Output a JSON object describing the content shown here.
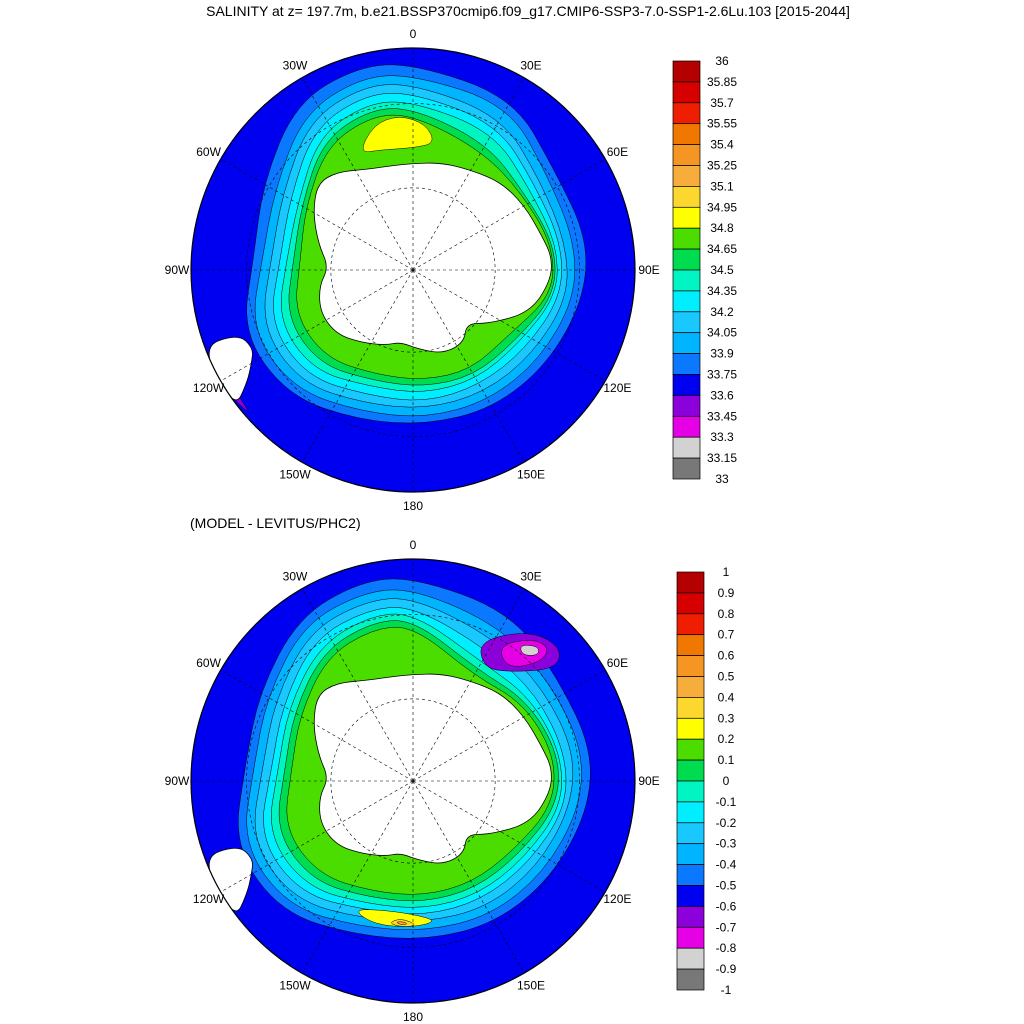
{
  "chart_data": [
    {
      "type": "heatmap",
      "projection": "south-polar-stereographic",
      "title": "SALINITY at z= 197.7m, b.e21.BSSP370cmip6.f09_g17.CMIP6-SSP3-7.0-SSP1-2.6Lu.103 [2015-2044]",
      "longitude_labels": [
        "0",
        "30E",
        "60E",
        "90E",
        "120E",
        "150E",
        "180",
        "150W",
        "120W",
        "90W",
        "60W",
        "30W"
      ],
      "grid": true,
      "legend": "right",
      "colorbar": {
        "labels": [
          "36",
          "35.85",
          "35.7",
          "35.55",
          "35.4",
          "35.25",
          "35.1",
          "34.95",
          "34.8",
          "34.65",
          "34.5",
          "34.35",
          "34.2",
          "34.05",
          "33.9",
          "33.75",
          "33.6",
          "33.45",
          "33.3",
          "33.15",
          "33"
        ],
        "colors": [
          "#b40000",
          "#d70000",
          "#f01e00",
          "#f07800",
          "#f59622",
          "#f7ad3c",
          "#fcd72e",
          "#ffff00",
          "#4bdc00",
          "#00dc50",
          "#00f5c3",
          "#00eeff",
          "#19c8ff",
          "#00b4ff",
          "#0a78ff",
          "#0000f0",
          "#8c00dc",
          "#e600e6",
          "#d2d2d2",
          "#787878"
        ]
      },
      "fields": {
        "ocean_background": "#0000f0",
        "zones": [
          {
            "name": "33.75-33.9",
            "color": "#0a78ff"
          },
          {
            "name": "33.9-34.05",
            "color": "#00b4ff"
          },
          {
            "name": "34.05-34.2",
            "color": "#19c8ff"
          },
          {
            "name": "34.2-34.35",
            "color": "#00eeff"
          },
          {
            "name": "34.35-34.5",
            "color": "#00f5c3"
          },
          {
            "name": "34.5-34.65",
            "color": "#00dc50"
          },
          {
            "name": "34.65-34.8",
            "color": "#4bdc00"
          },
          {
            "name": "34.8-34.95",
            "color": "#ffff00"
          },
          {
            "name": "33.45-33.6",
            "color": "#8c00dc"
          }
        ]
      }
    },
    {
      "type": "heatmap",
      "projection": "south-polar-stereographic",
      "title": "(MODEL - LEVITUS/PHC2)",
      "longitude_labels": [
        "0",
        "30E",
        "60E",
        "90E",
        "120E",
        "150E",
        "180",
        "150W",
        "120W",
        "90W",
        "60W",
        "30W"
      ],
      "grid": true,
      "legend": "right",
      "colorbar": {
        "labels": [
          "1",
          "0.9",
          "0.8",
          "0.7",
          "0.6",
          "0.5",
          "0.4",
          "0.3",
          "0.2",
          "0.1",
          "0",
          "-0.1",
          "-0.2",
          "-0.3",
          "-0.4",
          "-0.5",
          "-0.6",
          "-0.7",
          "-0.8",
          "-0.9",
          "-1"
        ],
        "colors": [
          "#b40000",
          "#d70000",
          "#f01e00",
          "#f07800",
          "#f59622",
          "#f7ad3c",
          "#fcd72e",
          "#ffff00",
          "#4bdc00",
          "#00dc50",
          "#00f5c3",
          "#00eeff",
          "#19c8ff",
          "#00b4ff",
          "#0a78ff",
          "#0000f0",
          "#8c00dc",
          "#e600e6",
          "#d2d2d2",
          "#787878"
        ]
      },
      "fields": {
        "ocean_background": "#0000f0",
        "zones": [
          {
            "name": "-0.5--0.4",
            "color": "#0a78ff"
          },
          {
            "name": "-0.4--0.3",
            "color": "#00b4ff"
          },
          {
            "name": "-0.3--0.2",
            "color": "#19c8ff"
          },
          {
            "name": "-0.2--0.1",
            "color": "#00eeff"
          },
          {
            "name": "-0.1-0",
            "color": "#00f5c3"
          },
          {
            "name": "0-0.1",
            "color": "#00dc50"
          },
          {
            "name": "0.1-0.2",
            "color": "#4bdc00"
          },
          {
            "name": "0.2-0.3",
            "color": "#ffff00"
          },
          {
            "name": "0.3-0.4",
            "color": "#fcd72e"
          },
          {
            "name": "0.4-0.5",
            "color": "#f7ad3c"
          },
          {
            "name": "-0.7--0.6",
            "color": "#8c00dc"
          },
          {
            "name": "-0.8--0.7",
            "color": "#e600e6"
          },
          {
            "name": "-0.9--0.8",
            "color": "#d2d2d2"
          }
        ]
      }
    }
  ]
}
